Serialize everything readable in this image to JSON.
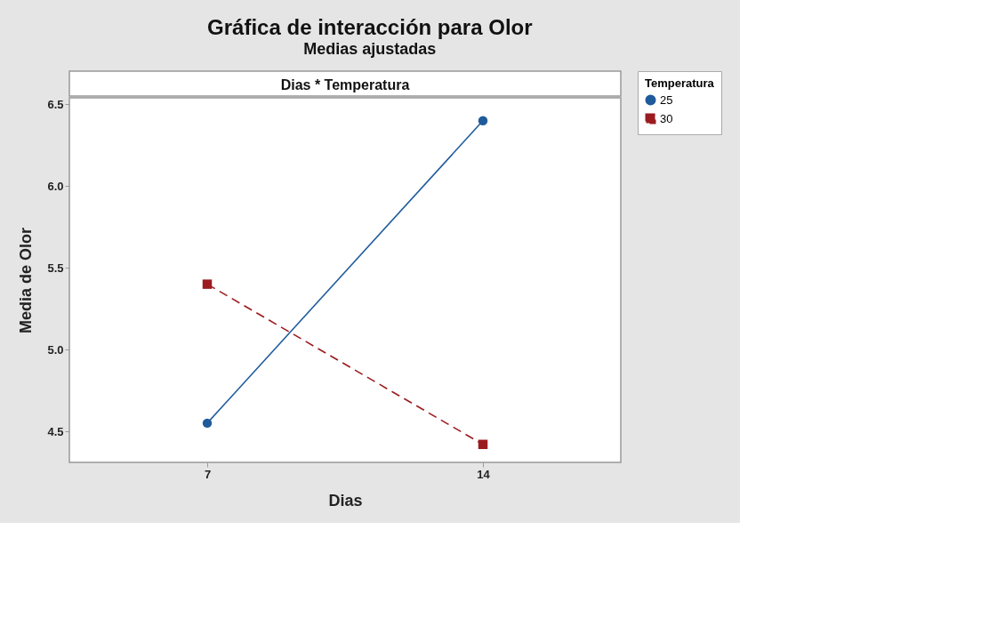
{
  "chart_data": {
    "type": "line",
    "title": "Gráfica de interacción para Olor",
    "subtitle": "Medias ajustadas",
    "xlabel": "Dias",
    "ylabel": "Media de Olor",
    "legend_title": "Temperatura",
    "annotations": [
      "Dias * Temperatura"
    ],
    "categories": [
      "7",
      "14"
    ],
    "series": [
      {
        "name": "25",
        "color": "#1f5b9b",
        "values": [
          4.55,
          6.4
        ],
        "marker": "circle",
        "line_style": "solid"
      },
      {
        "name": "30",
        "color": "#9b1b1f",
        "values": [
          5.4,
          4.42
        ],
        "marker": "square",
        "line_style": "dashed"
      }
    ],
    "ylim": [
      4.31,
      6.54
    ],
    "yticks": [
      4.5,
      {
        "value": 5,
        "label": "5.0"
      },
      5.5,
      {
        "value": 6,
        "label": "6.0"
      },
      6.5
    ],
    "grid": false,
    "legend": "top right"
  }
}
